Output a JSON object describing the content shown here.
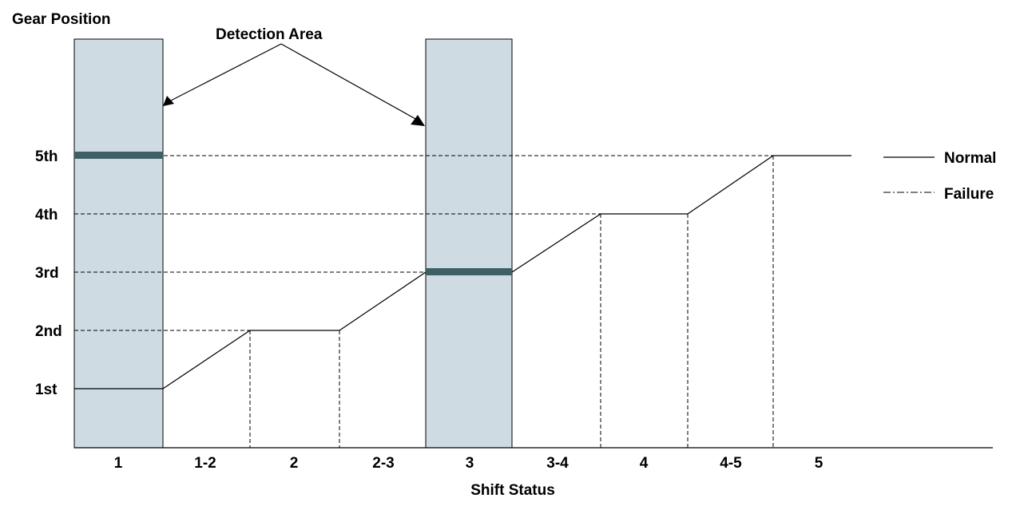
{
  "title": "Gear Position",
  "xlabel": "Shift Status",
  "annotation": "Detection Area",
  "legend": {
    "normal": "Normal",
    "failure": "Failure"
  },
  "gears": [
    "1st",
    "2nd",
    "3rd",
    "4th",
    "5th"
  ],
  "shift_status": [
    "1",
    "1-2",
    "2",
    "2-3",
    "3",
    "3-4",
    "4",
    "4-5",
    "5"
  ],
  "normal_gear_by_status": [
    1,
    1.5,
    2,
    2.5,
    3,
    3.5,
    4,
    4.5,
    5
  ],
  "detection_areas": [
    {
      "status": "1",
      "failure_gear": 5
    },
    {
      "status": "3",
      "failure_gear": 3
    }
  ],
  "colors": {
    "detection_area": "#cfdbe3",
    "failure_marker": "#3f5f66"
  }
}
